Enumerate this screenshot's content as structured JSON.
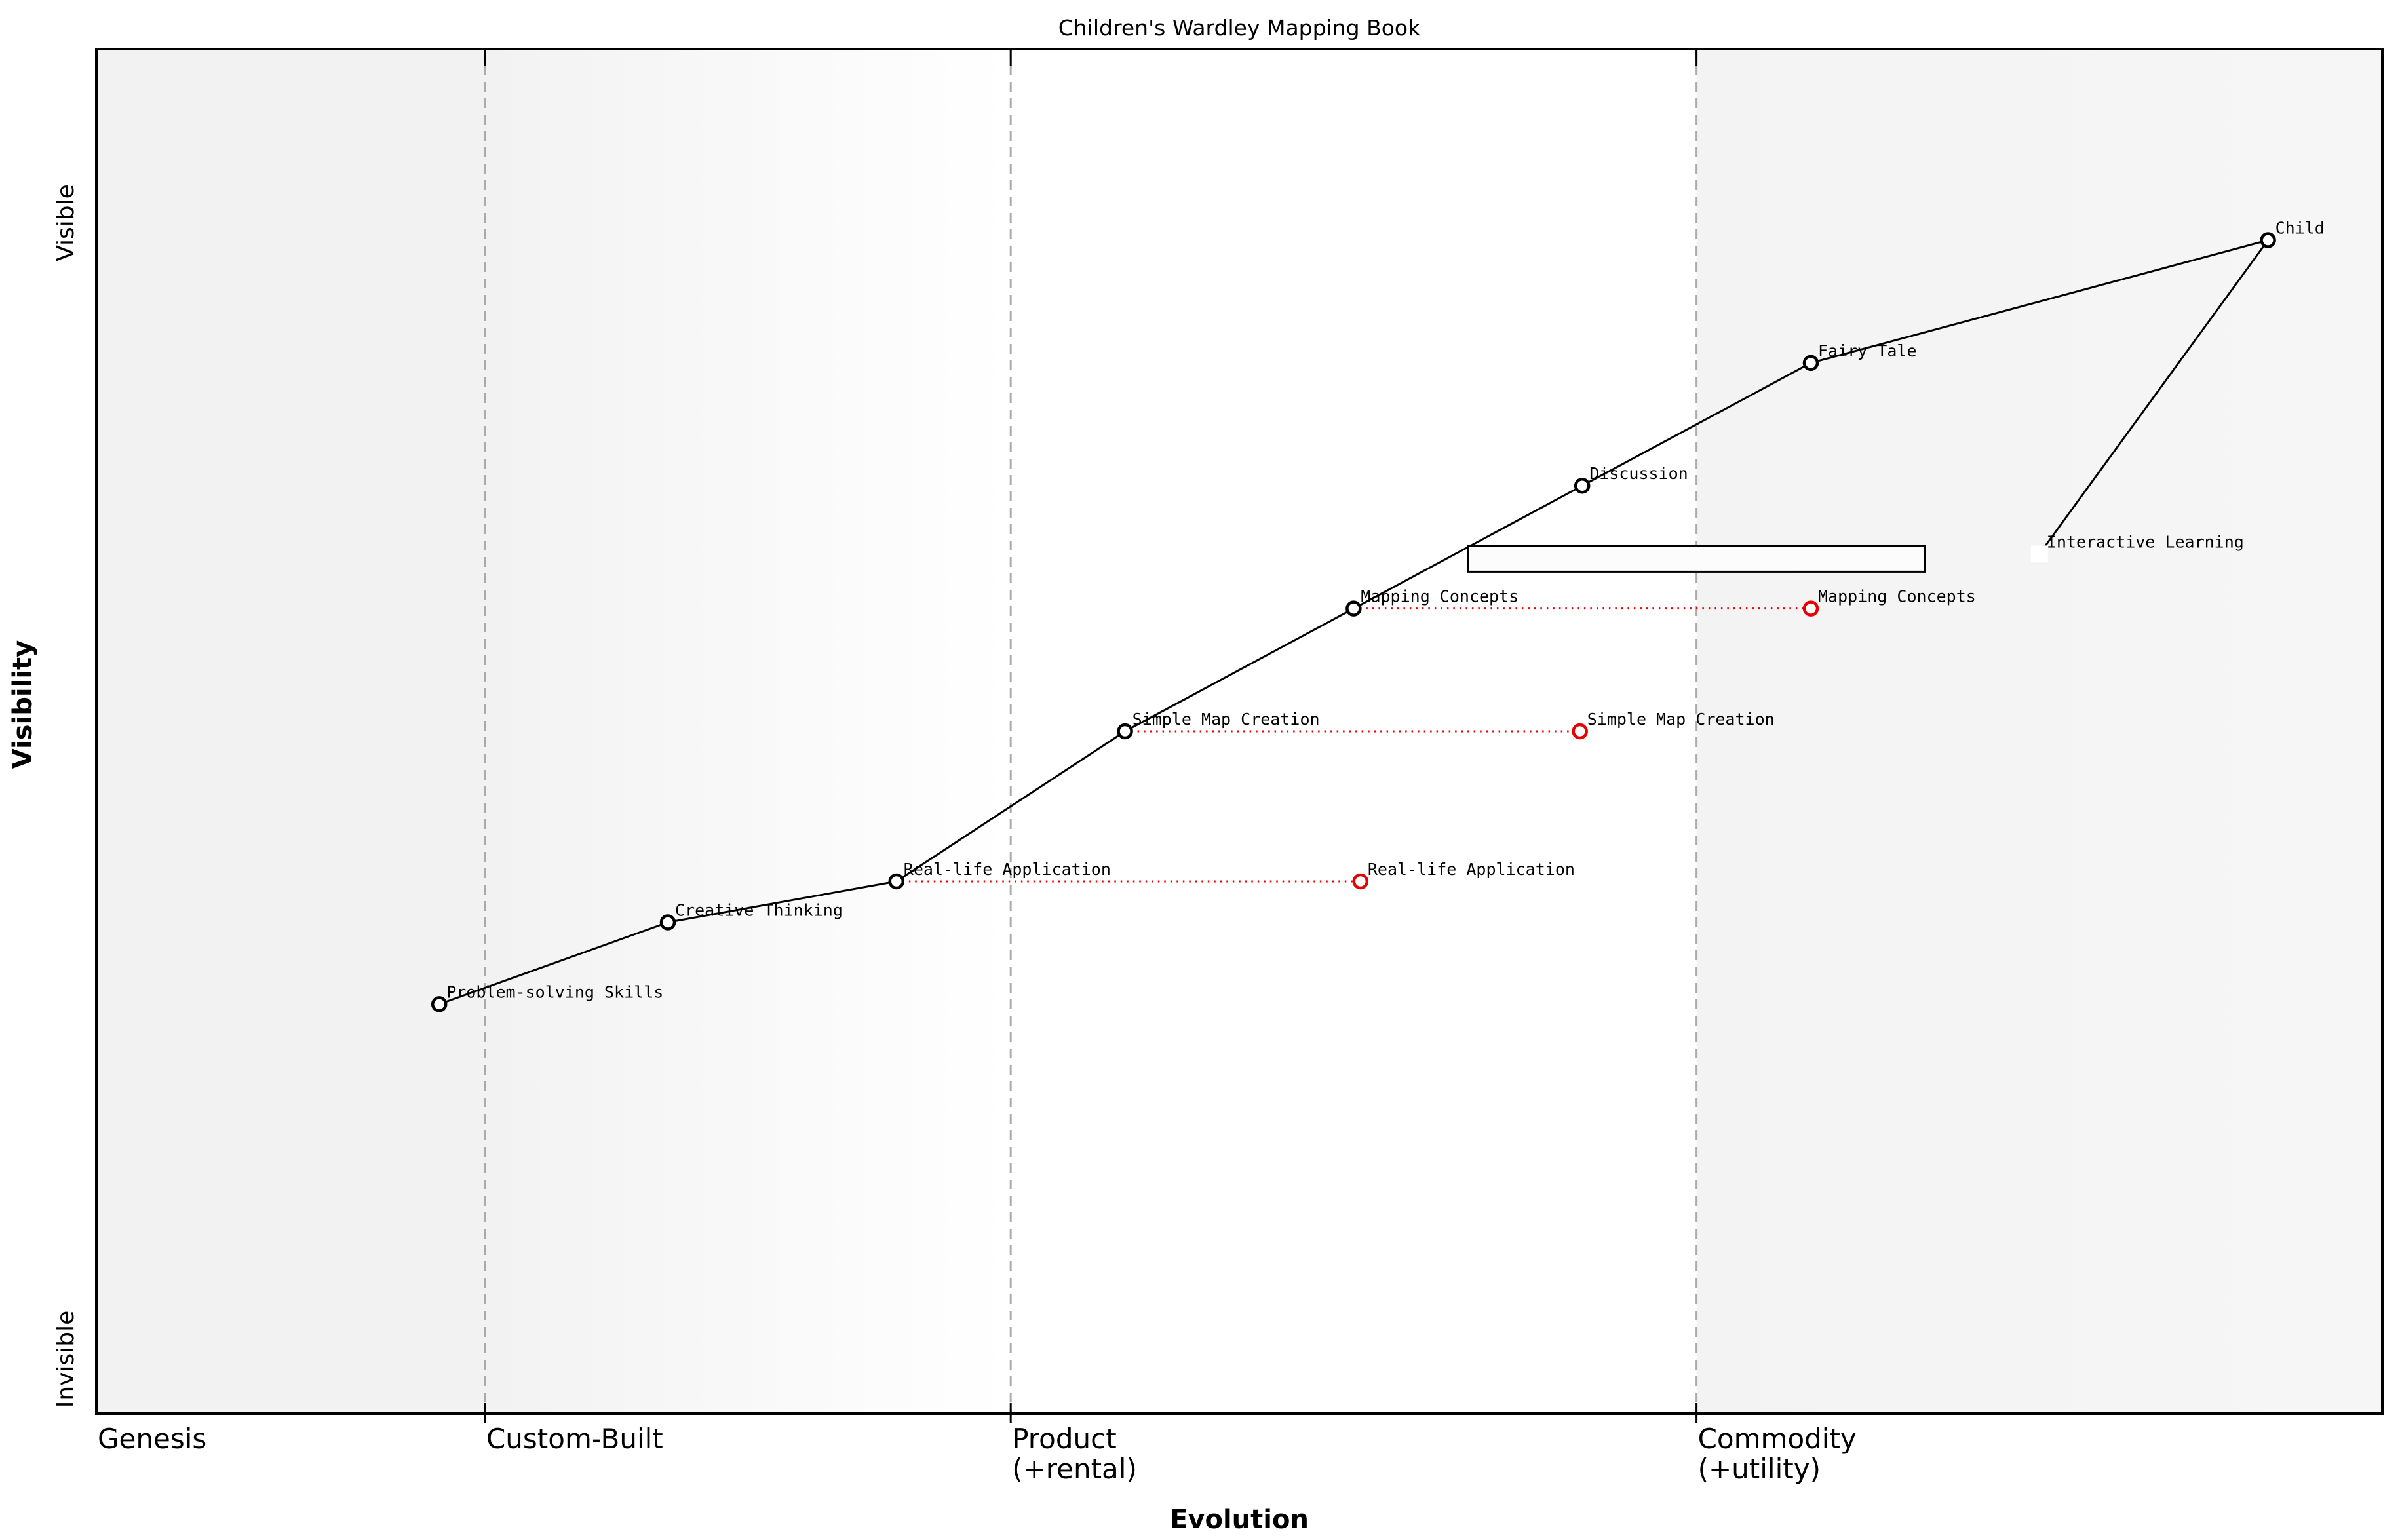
{
  "title": "Children's Wardley Mapping Book",
  "x_axis": {
    "label": "Evolution",
    "stages": [
      {
        "lines": [
          "Genesis"
        ],
        "start": 0.0
      },
      {
        "lines": [
          "Custom-Built"
        ],
        "start": 0.17
      },
      {
        "lines": [
          "Product",
          "(+rental)"
        ],
        "start": 0.4
      },
      {
        "lines": [
          "Commodity",
          "(+utility)"
        ],
        "start": 0.7
      }
    ]
  },
  "y_axis": {
    "label": "Visibility",
    "top_tick": "Visible",
    "bottom_tick": "Invisible"
  },
  "colors": {
    "line": "#000000",
    "node_fill": "#ffffff",
    "node_stroke": "#000000",
    "evolve_red": "#e60000",
    "boundary_gray": "#ababab",
    "band_gray_left": "#f2f2f2",
    "band_white": "#ffffff",
    "band_right_start": "#f3f3f3",
    "band_right_end": "#f6f6f6",
    "label_color": "#000000"
  },
  "chart_data": {
    "type": "scatter",
    "subtype": "wardley-map",
    "title": "Children's Wardley Mapping Book",
    "xlabel": "Evolution",
    "ylabel": "Visibility",
    "axis_ranges": {
      "evolution": [
        0,
        1
      ],
      "visibility": [
        0,
        1
      ]
    },
    "stage_boundaries": [
      0.17,
      0.4,
      0.7
    ],
    "grid": false,
    "nodes": [
      {
        "name": "Problem-solving Skills",
        "evolution": 0.15,
        "visibility": 0.3,
        "marker": "circle"
      },
      {
        "name": "Creative Thinking",
        "evolution": 0.25,
        "visibility": 0.36,
        "marker": "circle"
      },
      {
        "name": "Real-life Application",
        "evolution": 0.35,
        "visibility": 0.39,
        "marker": "circle"
      },
      {
        "name": "Simple Map Creation",
        "evolution": 0.45,
        "visibility": 0.5,
        "marker": "circle"
      },
      {
        "name": "Mapping Concepts",
        "evolution": 0.55,
        "visibility": 0.59,
        "marker": "circle"
      },
      {
        "name": "Discussion",
        "evolution": 0.65,
        "visibility": 0.68,
        "marker": "circle"
      },
      {
        "name": "Fairy Tale",
        "evolution": 0.75,
        "visibility": 0.77,
        "marker": "circle"
      },
      {
        "name": "Child",
        "evolution": 0.95,
        "visibility": 0.86,
        "marker": "circle"
      },
      {
        "name": "Interactive Learning",
        "evolution": 0.85,
        "visibility": 0.63,
        "marker": "white-square"
      }
    ],
    "edges": [
      [
        "Problem-solving Skills",
        "Creative Thinking"
      ],
      [
        "Creative Thinking",
        "Real-life Application"
      ],
      [
        "Real-life Application",
        "Simple Map Creation"
      ],
      [
        "Simple Map Creation",
        "Mapping Concepts"
      ],
      [
        "Mapping Concepts",
        "Discussion"
      ],
      [
        "Discussion",
        "Fairy Tale"
      ],
      [
        "Fairy Tale",
        "Child"
      ],
      [
        "Child",
        "Interactive Learning"
      ]
    ],
    "evolve_links": [
      {
        "from": "Real-life Application",
        "to_evolution": 0.553,
        "label": "Real-life Application"
      },
      {
        "from": "Simple Map Creation",
        "to_evolution": 0.649,
        "label": "Simple Map Creation"
      },
      {
        "from": "Mapping Concepts",
        "to_evolution": 0.75,
        "label": "Mapping Concepts"
      }
    ],
    "pipeline": {
      "evolution_start": 0.6,
      "evolution_end": 0.8,
      "visibility_top": 0.636,
      "visibility_bottom": 0.617
    }
  }
}
